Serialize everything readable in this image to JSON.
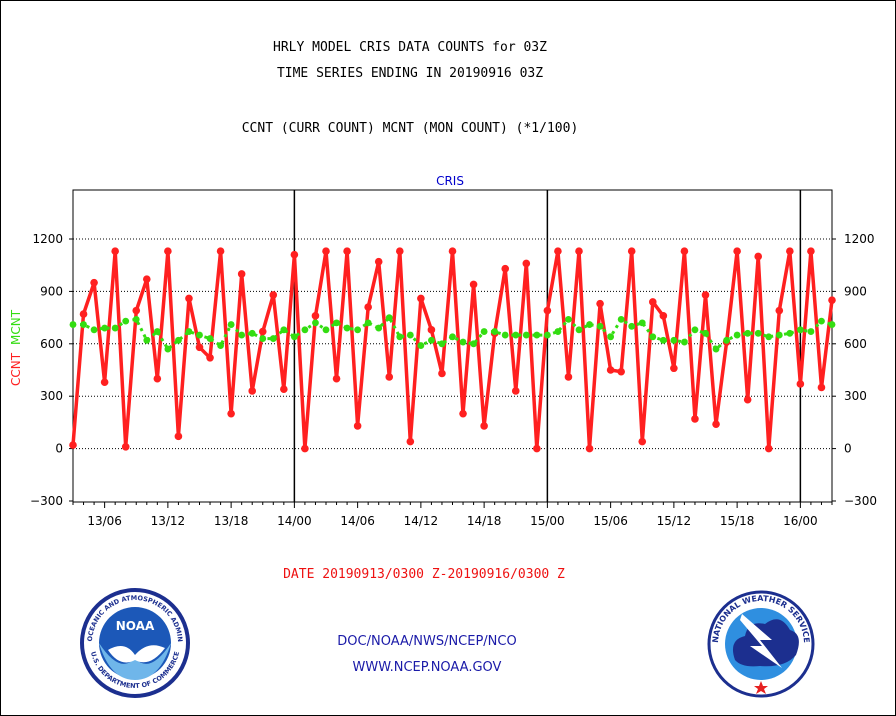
{
  "header": {
    "title_line1": "HRLY MODEL CRIS DATA COUNTS for 03Z",
    "title_line2": "TIME SERIES ENDING IN 20190916 03Z",
    "subtitle": "CCNT (CURR COUNT) MCNT (MON COUNT) (*1/100)"
  },
  "footer": {
    "date_range": "DATE 20190913/0300 Z-20190916/0300 Z",
    "org": "DOC/NOAA/NWS/NCEP/NCO",
    "url": "WWW.NCEP.NOAA.GOV"
  },
  "logos": {
    "noaa_center": "NOAA",
    "noaa_ring_top": "NATIONAL OCEANIC AND ATMOSPHERIC ADMINISTRATION",
    "noaa_ring_bottom": "U.S. DEPARTMENT OF COMMERCE",
    "nws_ring": "NATIONAL WEATHER SERVICE"
  },
  "colors": {
    "ccnt": "#ff2020",
    "mcnt": "#33dd11",
    "axis_text": "#000000",
    "panel_title": "#0000cc",
    "footer_blue": "#1a1aa8",
    "date_red": "#ee1111"
  },
  "chart_data": {
    "type": "line",
    "panel_title": "CRIS",
    "ylabel_left": "CCNT",
    "ylabel_right": "MCNT",
    "ylim": [
      -300,
      1200
    ],
    "yticks": [
      -300,
      0,
      300,
      600,
      900,
      1200
    ],
    "ytick_labels": [
      "−300",
      "0",
      "300",
      "600",
      "900",
      "1200"
    ],
    "x_unit": "hours since 2019-09-13 03Z",
    "xlim": [
      0,
      72
    ],
    "xticks": [
      {
        "x": 3,
        "label": "13/06"
      },
      {
        "x": 9,
        "label": "13/12"
      },
      {
        "x": 15,
        "label": "13/18"
      },
      {
        "x": 21,
        "label": "14/00"
      },
      {
        "x": 27,
        "label": "14/06"
      },
      {
        "x": 33,
        "label": "14/12"
      },
      {
        "x": 39,
        "label": "14/18"
      },
      {
        "x": 45,
        "label": "15/00"
      },
      {
        "x": 51,
        "label": "15/06"
      },
      {
        "x": 57,
        "label": "15/12"
      },
      {
        "x": 63,
        "label": "15/18"
      },
      {
        "x": 69,
        "label": "16/00"
      }
    ],
    "day_dividers_x": [
      21,
      45,
      69
    ],
    "grid": "horizontal dotted at y ticks",
    "series": [
      {
        "name": "CCNT",
        "values": [
          20,
          770,
          950,
          380,
          1130,
          10,
          790,
          970,
          400,
          1130,
          70,
          860,
          580,
          520,
          1130,
          200,
          1000,
          330,
          670,
          880,
          340,
          1110,
          0,
          760,
          1130,
          400,
          1130,
          130,
          810,
          1070,
          410,
          1130,
          40,
          860,
          680,
          430,
          1130,
          200,
          940,
          130,
          660,
          1030,
          330,
          1060,
          0,
          790,
          1130,
          410,
          1130,
          0,
          830,
          450,
          440,
          1130,
          40,
          840,
          760,
          460,
          1130,
          170,
          880,
          140,
          610,
          1130,
          280,
          1100,
          0,
          790,
          1130,
          370,
          1130,
          350,
          850
        ]
      },
      {
        "name": "MCNT",
        "values": [
          710,
          710,
          680,
          690,
          690,
          730,
          740,
          620,
          670,
          570,
          620,
          670,
          650,
          630,
          590,
          710,
          650,
          660,
          630,
          630,
          680,
          640,
          680,
          720,
          680,
          720,
          690,
          680,
          720,
          690,
          750,
          640,
          650,
          590,
          620,
          600,
          640,
          610,
          600,
          670,
          670,
          650,
          650,
          650,
          650,
          650,
          670,
          740,
          680,
          710,
          700,
          640,
          740,
          700,
          720,
          640,
          620,
          620,
          610,
          680,
          660,
          570,
          620,
          650,
          660,
          660,
          640,
          650,
          660,
          680,
          670,
          730,
          710
        ]
      }
    ]
  }
}
